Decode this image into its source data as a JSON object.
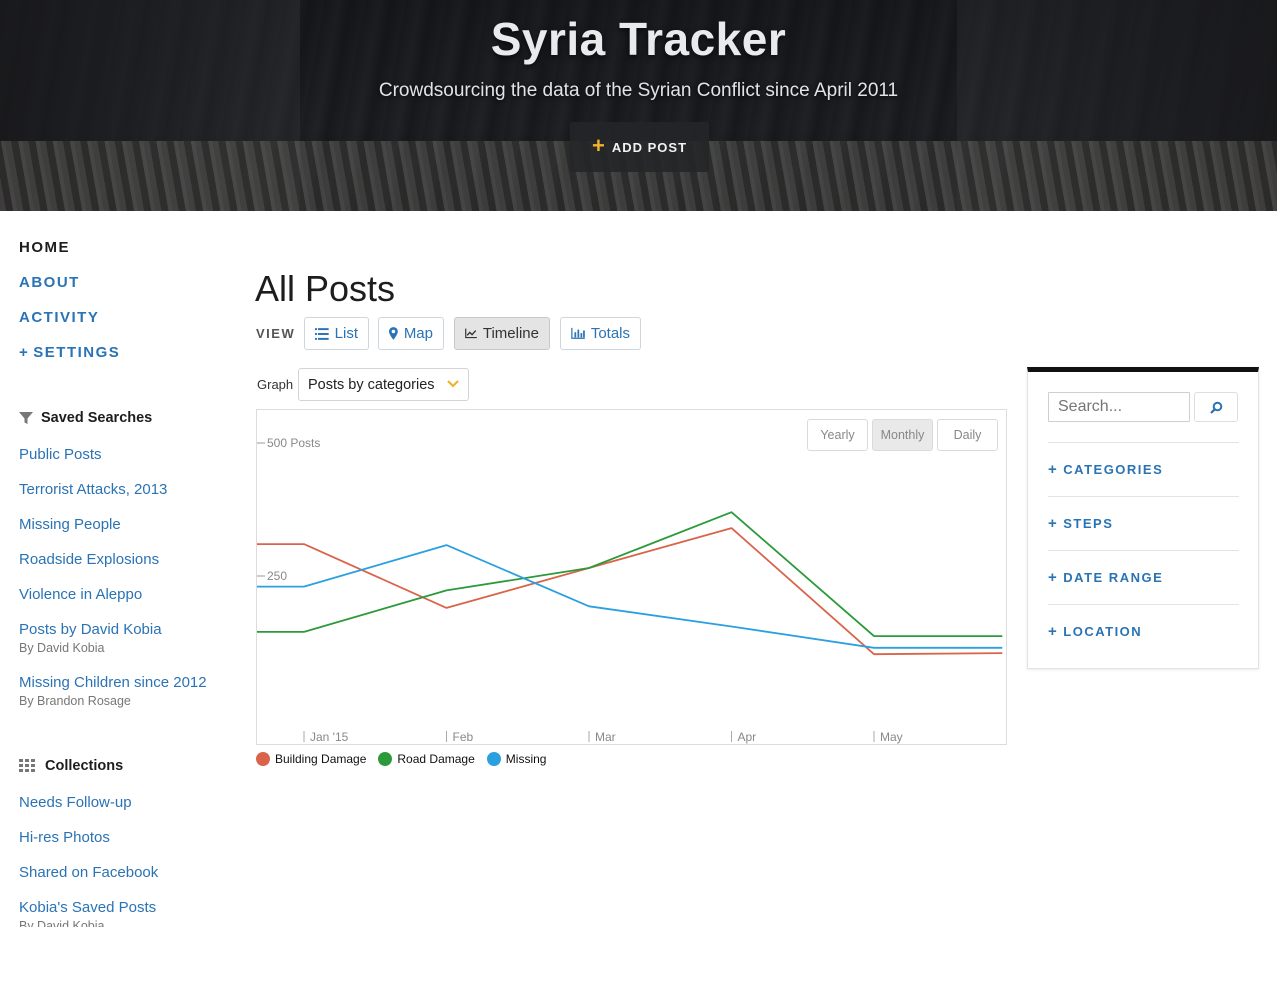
{
  "header": {
    "title": "Syria Tracker",
    "subtitle": "Crowdsourcing the data of the Syrian Conflict since April 2011",
    "add_post_label": "ADD POST"
  },
  "nav": {
    "items": [
      {
        "label": "HOME",
        "active": true
      },
      {
        "label": "ABOUT"
      },
      {
        "label": "ACTIVITY"
      },
      {
        "label": "SETTINGS",
        "prefix": "+"
      }
    ]
  },
  "saved_searches": {
    "title": "Saved Searches",
    "items": [
      {
        "label": "Public Posts"
      },
      {
        "label": "Terrorist Attacks, 2013"
      },
      {
        "label": "Missing People"
      },
      {
        "label": "Roadside Explosions"
      },
      {
        "label": "Violence in Aleppo"
      },
      {
        "label": "Posts by David Kobia",
        "by": "By David Kobia"
      },
      {
        "label": "Missing Children since 2012",
        "by": "By Brandon Rosage"
      }
    ]
  },
  "collections": {
    "title": "Collections",
    "items": [
      {
        "label": "Needs Follow-up"
      },
      {
        "label": "Hi-res Photos"
      },
      {
        "label": "Shared on Facebook"
      },
      {
        "label": "Kobia's Saved Posts",
        "by": "By David Kobia"
      }
    ]
  },
  "main": {
    "title": "All Posts",
    "view_label": "VIEW",
    "views": [
      {
        "label": "List",
        "icon": "list-icon"
      },
      {
        "label": "Map",
        "icon": "map-marker-icon"
      },
      {
        "label": "Timeline",
        "icon": "line-chart-icon",
        "active": true
      },
      {
        "label": "Totals",
        "icon": "bar-chart-icon"
      }
    ],
    "graph_label": "Graph",
    "graph_select": "Posts by categories",
    "periods": [
      {
        "label": "Yearly"
      },
      {
        "label": "Monthly",
        "active": true
      },
      {
        "label": "Daily"
      }
    ]
  },
  "filters": {
    "search_placeholder": "Search...",
    "rows": [
      "CATEGORIES",
      "STEPS",
      "DATE RANGE",
      "LOCATION"
    ]
  },
  "colors": {
    "link": "#2a73b4",
    "accent": "#f1b32c",
    "building_damage": "#d9644a",
    "road_damage": "#2c9a3a",
    "missing": "#2ba0e0"
  },
  "chart_data": {
    "type": "line",
    "x": [
      "Jan '15",
      "Feb",
      "Mar",
      "Apr",
      "May"
    ],
    "y_ticks": [
      {
        "value": 500,
        "label": "500 Posts"
      },
      {
        "value": 250,
        "label": "250"
      }
    ],
    "ylim": [
      0,
      560
    ],
    "series": [
      {
        "name": "Building Damage",
        "color": "#d9644a",
        "values": [
          [
            -0.35,
            310
          ],
          [
            0,
            310
          ],
          [
            1,
            190
          ],
          [
            2,
            265
          ],
          [
            3,
            340
          ],
          [
            4,
            103
          ],
          [
            4.9,
            105
          ]
        ]
      },
      {
        "name": "Road Damage",
        "color": "#2c9a3a",
        "values": [
          [
            -0.35,
            145
          ],
          [
            0,
            145
          ],
          [
            1,
            223
          ],
          [
            2,
            265
          ],
          [
            3,
            370
          ],
          [
            4,
            137
          ],
          [
            4.9,
            137
          ]
        ]
      },
      {
        "name": "Missing",
        "color": "#2ba0e0",
        "values": [
          [
            -0.35,
            230
          ],
          [
            0,
            230
          ],
          [
            1,
            308
          ],
          [
            2,
            193
          ],
          [
            3,
            155
          ],
          [
            4,
            115
          ],
          [
            4.9,
            115
          ]
        ]
      }
    ],
    "grid": false,
    "legend": "bottom-left"
  }
}
